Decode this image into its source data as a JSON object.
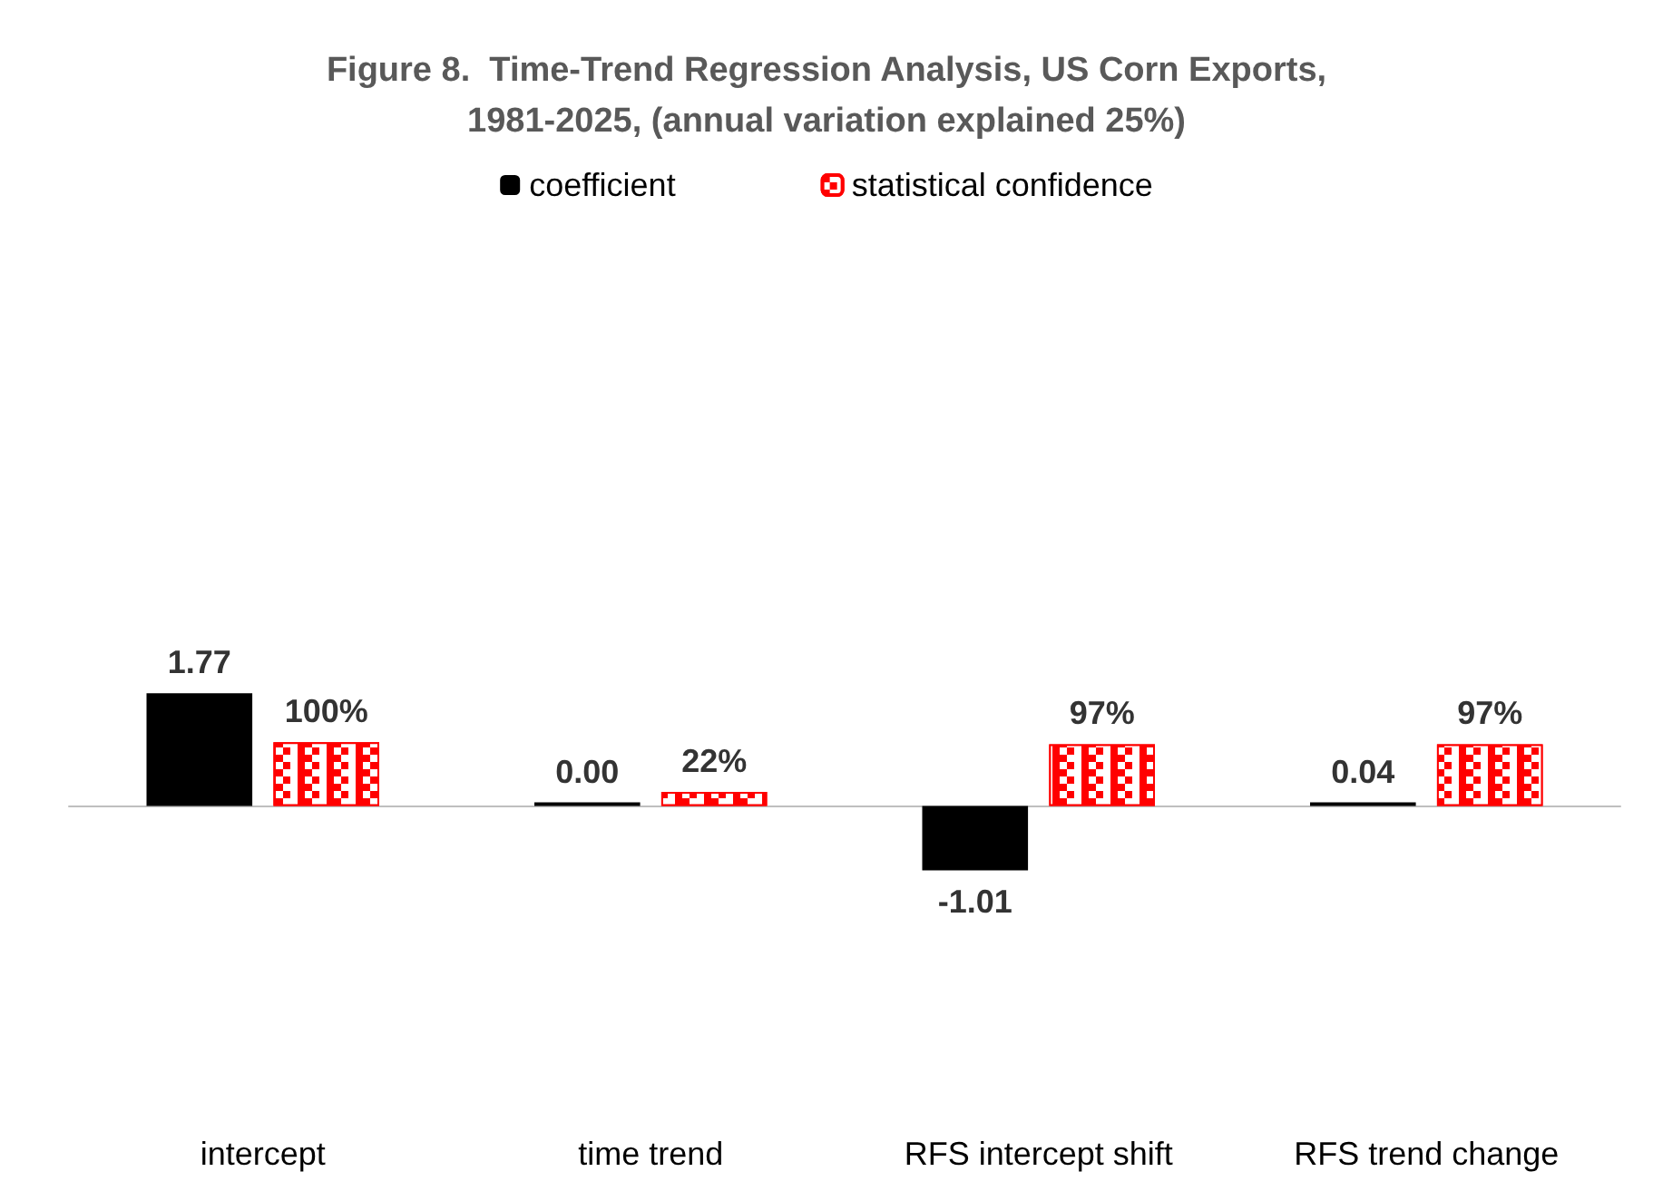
{
  "chart_data": {
    "type": "bar",
    "title": "Figure 8.  Time-Trend Regression Analysis, US Corn Exports,\n1981-2025, (annual variation explained 25%)",
    "categories": [
      "intercept",
      "time trend",
      "RFS intercept shift",
      "RFS trend change"
    ],
    "series": [
      {
        "name": "coefficient",
        "color": "#000000",
        "values": [
          1.77,
          0.0,
          -1.01,
          0.04
        ],
        "value_labels": [
          "1.77",
          "0.00",
          "-1.01",
          "0.04"
        ]
      },
      {
        "name": "statistical confidence",
        "color": "#ff0000",
        "values": [
          1.0,
          0.22,
          0.97,
          0.97
        ],
        "value_labels": [
          "100%",
          "22%",
          "97%",
          "97%"
        ]
      }
    ],
    "legend": "top"
  }
}
